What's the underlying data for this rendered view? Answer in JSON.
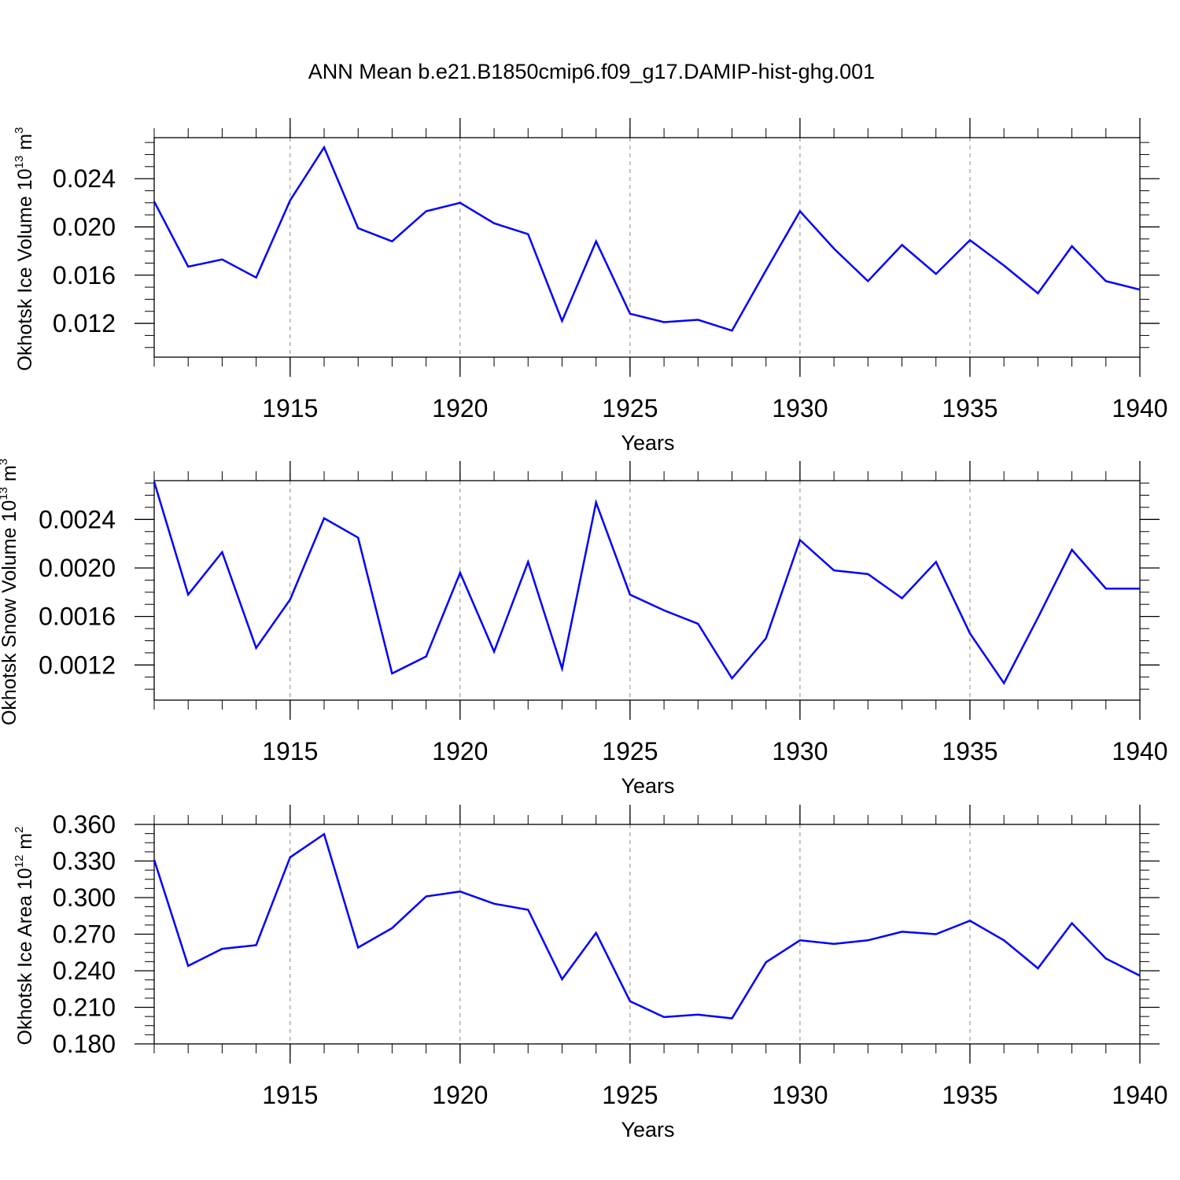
{
  "figure_title": "ANN Mean b.e21.B1850cmip6.f09_g17.DAMIP-hist-ghg.001",
  "chart_data": [
    {
      "type": "line",
      "title": "ANN Mean b.e21.B1850cmip6.f09_g17.DAMIP-hist-ghg.001",
      "xlabel": "Years",
      "ylabel_text": "Okhotsk Ice Volume 10",
      "ylabel_exp": "13",
      "ylabel_unit": " m",
      "ylabel_unit_exp": "3",
      "xlim": [
        1911,
        1940
      ],
      "ylim": [
        0.0092,
        0.0274
      ],
      "yticks": [
        0.012,
        0.016,
        0.02,
        0.024
      ],
      "ytick_labels": [
        "0.012",
        "0.016",
        "0.020",
        "0.024"
      ],
      "xticks": [
        1915,
        1920,
        1925,
        1930,
        1935,
        1940
      ],
      "xtick_labels": [
        "1915",
        "1920",
        "1925",
        "1930",
        "1935",
        "1940"
      ],
      "grid": "vertical dashed at major x ticks",
      "line_color": "#0000ff",
      "series": [
        {
          "name": "Okhotsk Ice Volume",
          "x": [
            1911,
            1912,
            1913,
            1914,
            1915,
            1916,
            1917,
            1918,
            1919,
            1920,
            1921,
            1922,
            1923,
            1924,
            1925,
            1926,
            1927,
            1928,
            1929,
            1930,
            1931,
            1932,
            1933,
            1934,
            1935,
            1936,
            1937,
            1938,
            1939,
            1940
          ],
          "values": [
            0.0221,
            0.0167,
            0.0173,
            0.0158,
            0.0222,
            0.0266,
            0.0199,
            0.0188,
            0.0213,
            0.022,
            0.0203,
            0.0194,
            0.0122,
            0.0188,
            0.0128,
            0.0121,
            0.0123,
            0.0114,
            0.0164,
            0.0213,
            0.0182,
            0.0155,
            0.0185,
            0.0161,
            0.0189,
            0.0168,
            0.0145,
            0.0184,
            0.0155,
            0.0148
          ]
        }
      ]
    },
    {
      "type": "line",
      "xlabel": "Years",
      "ylabel_text": "Okhotsk Snow Volume 10",
      "ylabel_exp": "13",
      "ylabel_unit": " m",
      "ylabel_unit_exp": "3",
      "xlim": [
        1911,
        1940
      ],
      "ylim": [
        0.00091,
        0.00272
      ],
      "yticks": [
        0.0012,
        0.0016,
        0.002,
        0.0024
      ],
      "ytick_labels": [
        "0.0012",
        "0.0016",
        "0.0020",
        "0.0024"
      ],
      "xticks": [
        1915,
        1920,
        1925,
        1930,
        1935,
        1940
      ],
      "xtick_labels": [
        "1915",
        "1920",
        "1925",
        "1930",
        "1935",
        "1940"
      ],
      "grid": "vertical dashed at major x ticks",
      "line_color": "#0000ff",
      "series": [
        {
          "name": "Okhotsk Snow Volume",
          "x": [
            1911,
            1912,
            1913,
            1914,
            1915,
            1916,
            1917,
            1918,
            1919,
            1920,
            1921,
            1922,
            1923,
            1924,
            1925,
            1926,
            1927,
            1928,
            1929,
            1930,
            1931,
            1932,
            1933,
            1934,
            1935,
            1936,
            1937,
            1938,
            1939,
            1940
          ],
          "values": [
            0.00271,
            0.00178,
            0.00213,
            0.00134,
            0.00174,
            0.00241,
            0.00225,
            0.00113,
            0.00127,
            0.00196,
            0.00131,
            0.00205,
            0.00117,
            0.00254,
            0.00178,
            0.00165,
            0.00154,
            0.00109,
            0.00142,
            0.00223,
            0.00198,
            0.00195,
            0.00175,
            0.00205,
            0.00146,
            0.00105,
            0.00159,
            0.00215,
            0.00183,
            0.00183
          ]
        }
      ]
    },
    {
      "type": "line",
      "xlabel": "Years",
      "ylabel_text": "Okhotsk Ice Area 10",
      "ylabel_exp": "12",
      "ylabel_unit": " m",
      "ylabel_unit_exp": "2",
      "xlim": [
        1911,
        1940
      ],
      "ylim": [
        0.18,
        0.36
      ],
      "yticks": [
        0.18,
        0.21,
        0.24,
        0.27,
        0.3,
        0.33,
        0.36
      ],
      "ytick_labels": [
        "0.180",
        "0.210",
        "0.240",
        "0.270",
        "0.300",
        "0.330",
        "0.360"
      ],
      "xticks": [
        1915,
        1920,
        1925,
        1930,
        1935,
        1940
      ],
      "xtick_labels": [
        "1915",
        "1920",
        "1925",
        "1930",
        "1935",
        "1940"
      ],
      "grid": "vertical dashed at major x ticks",
      "line_color": "#0000ff",
      "series": [
        {
          "name": "Okhotsk Ice Area",
          "x": [
            1911,
            1912,
            1913,
            1914,
            1915,
            1916,
            1917,
            1918,
            1919,
            1920,
            1921,
            1922,
            1923,
            1924,
            1925,
            1926,
            1927,
            1928,
            1929,
            1930,
            1931,
            1932,
            1933,
            1934,
            1935,
            1936,
            1937,
            1938,
            1939,
            1940
          ],
          "values": [
            0.331,
            0.244,
            0.258,
            0.261,
            0.333,
            0.352,
            0.259,
            0.275,
            0.301,
            0.305,
            0.295,
            0.29,
            0.233,
            0.271,
            0.215,
            0.202,
            0.204,
            0.201,
            0.247,
            0.265,
            0.262,
            0.265,
            0.272,
            0.27,
            0.281,
            0.265,
            0.242,
            0.279,
            0.25,
            0.236
          ]
        }
      ]
    }
  ]
}
